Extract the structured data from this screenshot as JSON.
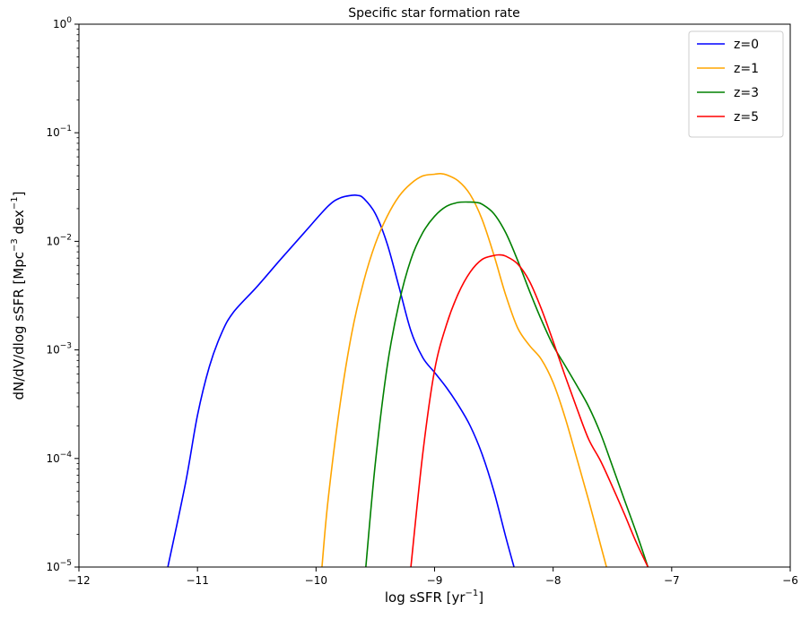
{
  "chart_data": {
    "type": "line",
    "title": "Specific star formation rate",
    "xlabel_parts": [
      "log sSFR [yr",
      "−1",
      "]"
    ],
    "ylabel_parts": [
      "dN/dV/dlog sSFR [Mpc",
      "−3",
      " dex",
      "−1",
      "]"
    ],
    "xlim": [
      -12,
      -6
    ],
    "ylim": [
      1e-05,
      1
    ],
    "yscale": "log",
    "grid": false,
    "legend_position": "top-right",
    "x_ticks": [
      {
        "value": -12,
        "label": "−12"
      },
      {
        "value": -11,
        "label": "−11"
      },
      {
        "value": -10,
        "label": "−10"
      },
      {
        "value": -9,
        "label": "−9"
      },
      {
        "value": -8,
        "label": "−8"
      },
      {
        "value": -7,
        "label": "−7"
      },
      {
        "value": -6,
        "label": "−6"
      }
    ],
    "y_ticks": [
      {
        "value": 1e-05,
        "base": "10",
        "exp": "−5"
      },
      {
        "value": 0.0001,
        "base": "10",
        "exp": "−4"
      },
      {
        "value": 0.001,
        "base": "10",
        "exp": "−3"
      },
      {
        "value": 0.01,
        "base": "10",
        "exp": "−2"
      },
      {
        "value": 0.1,
        "base": "10",
        "exp": "−1"
      },
      {
        "value": 1,
        "base": "10",
        "exp": "0"
      }
    ],
    "series": [
      {
        "name": "z=0",
        "color": "#0000ff",
        "x": [
          -11.25,
          -11.1,
          -11.0,
          -10.9,
          -10.8,
          -10.7,
          -10.5,
          -10.3,
          -10.1,
          -9.9,
          -9.8,
          -9.7,
          -9.65,
          -9.6,
          -9.5,
          -9.4,
          -9.3,
          -9.2,
          -9.1,
          -9.0,
          -8.9,
          -8.8,
          -8.7,
          -8.6,
          -8.5,
          -8.4,
          -8.33
        ],
        "y": [
          1e-05,
          6e-05,
          0.00025,
          0.0007,
          0.0014,
          0.0022,
          0.0038,
          0.0068,
          0.012,
          0.021,
          0.025,
          0.0265,
          0.0265,
          0.025,
          0.018,
          0.0095,
          0.0038,
          0.0015,
          0.00085,
          0.00062,
          0.00045,
          0.00031,
          0.0002,
          0.00011,
          5e-05,
          1.9e-05,
          1e-05
        ]
      },
      {
        "name": "z=1",
        "color": "#ffa500",
        "x": [
          -9.95,
          -9.9,
          -9.8,
          -9.7,
          -9.6,
          -9.5,
          -9.4,
          -9.3,
          -9.2,
          -9.1,
          -9.0,
          -8.95,
          -8.9,
          -8.8,
          -8.7,
          -8.6,
          -8.5,
          -8.4,
          -8.3,
          -8.2,
          -8.1,
          -8.0,
          -7.9,
          -7.8,
          -7.7,
          -7.6,
          -7.55
        ],
        "y": [
          1e-05,
          4e-05,
          0.0003,
          0.0014,
          0.0042,
          0.0095,
          0.017,
          0.026,
          0.034,
          0.04,
          0.0415,
          0.042,
          0.041,
          0.036,
          0.027,
          0.016,
          0.0075,
          0.0032,
          0.0016,
          0.0011,
          0.00082,
          0.0005,
          0.00024,
          0.0001,
          4.1e-05,
          1.6e-05,
          1e-05
        ]
      },
      {
        "name": "z=3",
        "color": "#008000",
        "x": [
          -9.58,
          -9.5,
          -9.4,
          -9.3,
          -9.2,
          -9.1,
          -9.0,
          -8.9,
          -8.8,
          -8.7,
          -8.65,
          -8.6,
          -8.5,
          -8.4,
          -8.3,
          -8.2,
          -8.1,
          -8.0,
          -7.9,
          -7.8,
          -7.7,
          -7.6,
          -7.5,
          -7.4,
          -7.3,
          -7.2
        ],
        "y": [
          1e-05,
          9e-05,
          0.0007,
          0.0027,
          0.0068,
          0.012,
          0.017,
          0.021,
          0.0228,
          0.023,
          0.0228,
          0.022,
          0.018,
          0.012,
          0.0067,
          0.0035,
          0.0019,
          0.0011,
          0.00072,
          0.00047,
          0.0003,
          0.00017,
          8.5e-05,
          4.2e-05,
          2.1e-05,
          1e-05
        ]
      },
      {
        "name": "z=5",
        "color": "#ff0000",
        "x": [
          -9.2,
          -9.1,
          -9.0,
          -8.9,
          -8.8,
          -8.7,
          -8.6,
          -8.5,
          -8.45,
          -8.4,
          -8.3,
          -8.2,
          -8.1,
          -8.0,
          -7.9,
          -7.8,
          -7.7,
          -7.6,
          -7.5,
          -7.4,
          -7.3,
          -7.2
        ],
        "y": [
          1e-05,
          0.00011,
          0.00065,
          0.0017,
          0.0033,
          0.0052,
          0.0068,
          0.0074,
          0.0075,
          0.0073,
          0.0062,
          0.0043,
          0.0024,
          0.0012,
          0.00058,
          0.00029,
          0.00015,
          9.5e-05,
          5.5e-05,
          3.1e-05,
          1.7e-05,
          1e-05
        ]
      }
    ]
  }
}
